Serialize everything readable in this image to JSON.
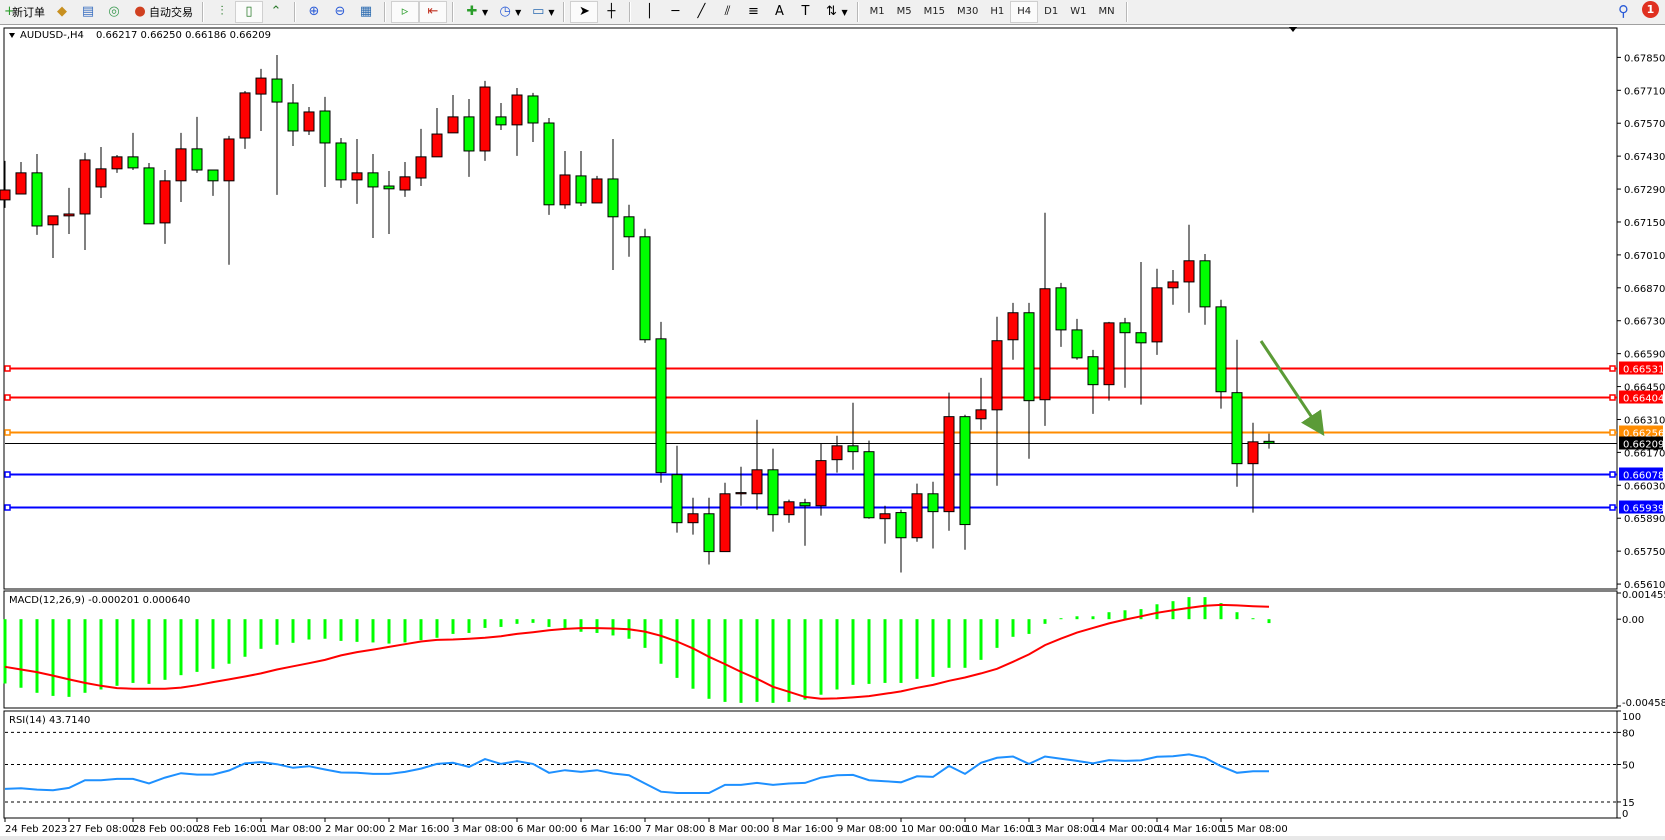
{
  "toolbar": {
    "new_order": "新订单",
    "auto_trading": "自动交易",
    "timeframes": [
      "M1",
      "M5",
      "M15",
      "M30",
      "H1",
      "H4",
      "D1",
      "W1",
      "MN"
    ],
    "active_timeframe": "H4",
    "notification_count": "1",
    "icons": [
      "new-order-icon",
      "market-watch-icon",
      "navigator-icon",
      "signals-icon",
      "auto-trading-icon",
      "bar-chart-icon",
      "candlestick-icon",
      "line-chart-icon",
      "zoom-in-icon",
      "zoom-out-icon",
      "tile-windows-icon",
      "auto-scroll-icon",
      "chart-shift-icon",
      "indicators-icon",
      "periods-icon",
      "templates-icon",
      "cursor-icon",
      "crosshair-icon",
      "vertical-line-icon",
      "horizontal-line-icon",
      "trendline-icon",
      "equidistant-channel-icon",
      "fibonacci-icon",
      "text-icon",
      "text-label-icon",
      "arrows-icon",
      "search-icon",
      "notification-icon"
    ]
  },
  "chart_data": [
    {
      "type": "candlestick",
      "symbol": "AUDUSD-,H4",
      "ohlc": "0.66217 0.66250 0.66186 0.66209",
      "ylim": [
        0.65589,
        0.67975
      ],
      "up_color": "#ff0000",
      "down_color": "#00ff00",
      "y_ticks": [
        "0.67850",
        "0.67710",
        "0.67570",
        "0.67430",
        "0.67290",
        "0.67150",
        "0.67010",
        "0.66870",
        "0.66730",
        "0.66590",
        "0.66450",
        "0.66310",
        "0.66170",
        "0.66030",
        "0.65890",
        "0.65750",
        "0.65610"
      ],
      "x_labels": [
        "24 Feb 2023",
        "27 Feb 08:00",
        "28 Feb 00:00",
        "28 Feb 16:00",
        "1 Mar 08:00",
        "2 Mar 00:00",
        "2 Mar 16:00",
        "3 Mar 08:00",
        "6 Mar 00:00",
        "6 Mar 16:00",
        "7 Mar 08:00",
        "8 Mar 00:00",
        "8 Mar 16:00",
        "9 Mar 08:00",
        "10 Mar 00:00",
        "10 Mar 16:00",
        "13 Mar 08:00",
        "14 Mar 00:00",
        "14 Mar 16:00",
        "15 Mar 08:00"
      ],
      "hlines": [
        {
          "price": "0.66531",
          "color": "#ff0000",
          "text_color": "#ffffff"
        },
        {
          "price": "0.66404",
          "color": "#ff0000",
          "text_color": "#ffffff"
        },
        {
          "price": "0.66256",
          "color": "#ff8c00",
          "text_color": "#ffffff"
        },
        {
          "price": "0.66078",
          "color": "#0000ff",
          "text_color": "#ffffff"
        },
        {
          "price": "0.65939",
          "color": "#0000ff",
          "text_color": "#ffffff"
        }
      ],
      "bid": {
        "price": "0.66209",
        "color": "#000000",
        "text_color": "#ffffff"
      },
      "arrow_color": "#5b9b37",
      "candles": [
        [
          0.67244,
          0.6741,
          0.6721,
          0.67286
        ],
        [
          0.67269,
          0.67405,
          0.67269,
          0.67359
        ],
        [
          0.67359,
          0.67439,
          0.67095,
          0.67133
        ],
        [
          0.67138,
          0.67176,
          0.66997,
          0.67176
        ],
        [
          0.67176,
          0.67295,
          0.67099,
          0.67184
        ],
        [
          0.67184,
          0.67444,
          0.67031,
          0.67414
        ],
        [
          0.67299,
          0.67469,
          0.67252,
          0.67376
        ],
        [
          0.67376,
          0.67435,
          0.67359,
          0.67427
        ],
        [
          0.67427,
          0.67529,
          0.67371,
          0.6738
        ],
        [
          0.6738,
          0.67401,
          0.67142,
          0.67142
        ],
        [
          0.67146,
          0.67371,
          0.67057,
          0.67325
        ],
        [
          0.67325,
          0.67529,
          0.67235,
          0.67461
        ],
        [
          0.67461,
          0.67597,
          0.67359,
          0.67371
        ],
        [
          0.67371,
          0.67371,
          0.67261,
          0.67325
        ],
        [
          0.67325,
          0.67516,
          0.66968,
          0.67503
        ],
        [
          0.67507,
          0.67707,
          0.67461,
          0.67699
        ],
        [
          0.67694,
          0.67801,
          0.67537,
          0.67762
        ],
        [
          0.67758,
          0.6786,
          0.67265,
          0.6766
        ],
        [
          0.67656,
          0.67737,
          0.67473,
          0.67537
        ],
        [
          0.67537,
          0.67639,
          0.6752,
          0.67618
        ],
        [
          0.67622,
          0.67682,
          0.67299,
          0.67486
        ],
        [
          0.67486,
          0.67507,
          0.67295,
          0.67329
        ],
        [
          0.67329,
          0.67503,
          0.67227,
          0.67359
        ],
        [
          0.67359,
          0.67439,
          0.67082,
          0.67299
        ],
        [
          0.67303,
          0.67367,
          0.67099,
          0.67291
        ],
        [
          0.67286,
          0.67405,
          0.67257,
          0.67342
        ],
        [
          0.67337,
          0.67546,
          0.67303,
          0.67427
        ],
        [
          0.67427,
          0.67635,
          0.67427,
          0.67524
        ],
        [
          0.67529,
          0.6769,
          0.67529,
          0.67597
        ],
        [
          0.67597,
          0.67673,
          0.67342,
          0.67452
        ],
        [
          0.67452,
          0.6775,
          0.6741,
          0.67724
        ],
        [
          0.67597,
          0.67656,
          0.67541,
          0.67563
        ],
        [
          0.67563,
          0.6772,
          0.67431,
          0.6769
        ],
        [
          0.67686,
          0.67699,
          0.6749,
          0.67571
        ],
        [
          0.67571,
          0.67592,
          0.6718,
          0.67223
        ],
        [
          0.67223,
          0.67452,
          0.67206,
          0.6735
        ],
        [
          0.67346,
          0.67452,
          0.67218,
          0.67231
        ],
        [
          0.67231,
          0.67346,
          0.67231,
          0.67333
        ],
        [
          0.67333,
          0.67503,
          0.66946,
          0.67172
        ],
        [
          0.67172,
          0.67223,
          0.67002,
          0.67087
        ],
        [
          0.67087,
          0.67121,
          0.66636,
          0.66649
        ],
        [
          0.66653,
          0.66725,
          0.66041,
          0.66084
        ],
        [
          0.66075,
          0.66198,
          0.65829,
          0.65871
        ],
        [
          0.65871,
          0.65977,
          0.6582,
          0.65909
        ],
        [
          0.65909,
          0.65977,
          0.65693,
          0.65748
        ],
        [
          0.65748,
          0.66041,
          0.65748,
          0.65994
        ],
        [
          0.65994,
          0.66109,
          0.65943,
          0.65999
        ],
        [
          0.65994,
          0.66309,
          0.65926,
          0.66096
        ],
        [
          0.66096,
          0.66186,
          0.65833,
          0.65905
        ],
        [
          0.65905,
          0.65969,
          0.65871,
          0.6596
        ],
        [
          0.65956,
          0.65973,
          0.65773,
          0.65943
        ],
        [
          0.65943,
          0.66207,
          0.65901,
          0.66135
        ],
        [
          0.66139,
          0.66241,
          0.66084,
          0.66198
        ],
        [
          0.66198,
          0.66381,
          0.66096,
          0.66173
        ],
        [
          0.66173,
          0.6622,
          0.65888,
          0.65892
        ],
        [
          0.65888,
          0.65943,
          0.65782,
          0.65909
        ],
        [
          0.65914,
          0.65926,
          0.65659,
          0.65807
        ],
        [
          0.65807,
          0.66037,
          0.6579,
          0.65994
        ],
        [
          0.65994,
          0.66045,
          0.65761,
          0.65918
        ],
        [
          0.65918,
          0.66424,
          0.65837,
          0.66322
        ],
        [
          0.66322,
          0.6633,
          0.65756,
          0.65863
        ],
        [
          0.66313,
          0.66487,
          0.66266,
          0.66351
        ],
        [
          0.66351,
          0.66747,
          0.66028,
          0.66645
        ],
        [
          0.66649,
          0.66806,
          0.66564,
          0.66764
        ],
        [
          0.66764,
          0.66806,
          0.66143,
          0.6639
        ],
        [
          0.66394,
          0.67189,
          0.66283,
          0.66866
        ],
        [
          0.6687,
          0.66891,
          0.66619,
          0.66691
        ],
        [
          0.66691,
          0.66738,
          0.66564,
          0.66572
        ],
        [
          0.66577,
          0.66606,
          0.66334,
          0.66458
        ],
        [
          0.66458,
          0.66725,
          0.6639,
          0.66721
        ],
        [
          0.66721,
          0.66742,
          0.66445,
          0.66679
        ],
        [
          0.66679,
          0.6698,
          0.66373,
          0.66636
        ],
        [
          0.6664,
          0.66951,
          0.66585,
          0.6687
        ],
        [
          0.6687,
          0.66946,
          0.66798,
          0.66895
        ],
        [
          0.66895,
          0.67138,
          0.66764,
          0.66985
        ],
        [
          0.66985,
          0.67014,
          0.66713,
          0.66789
        ],
        [
          0.66789,
          0.66819,
          0.66356,
          0.66428
        ],
        [
          0.66424,
          0.66649,
          0.66024,
          0.66122
        ],
        [
          0.66122,
          0.66296,
          0.65914,
          0.66215
        ],
        [
          0.66217,
          0.6625,
          0.66186,
          0.66209
        ]
      ]
    },
    {
      "type": "bar+line",
      "title": "MACD(12,26,9) -0.000201 0.000640",
      "ylim": [
        -0.004585,
        0.001455
      ],
      "y_ticks": [
        "0.001455",
        "0.00",
        "-0.004585"
      ],
      "histogram_color": "#00ff00",
      "signal_color": "#ff0000",
      "histogram": [
        -0.00332,
        -0.00354,
        -0.0038,
        -0.00396,
        -0.00401,
        -0.0038,
        -0.00363,
        -0.00344,
        -0.00329,
        -0.00334,
        -0.00313,
        -0.00289,
        -0.00272,
        -0.00256,
        -0.0023,
        -0.00194,
        -0.00153,
        -0.00132,
        -0.00122,
        -0.00105,
        -0.00101,
        -0.00112,
        -0.00117,
        -0.0012,
        -0.00126,
        -0.0012,
        -0.00108,
        -0.00096,
        -0.00076,
        -0.00071,
        -0.00045,
        -0.0004,
        -0.00024,
        -0.00019,
        -0.0004,
        -0.00048,
        -0.00065,
        -0.00071,
        -0.00084,
        -0.00101,
        -0.00148,
        -0.0023,
        -0.00303,
        -0.00359,
        -0.00411,
        -0.00427,
        -0.00432,
        -0.00427,
        -0.00432,
        -0.00427,
        -0.00415,
        -0.0039,
        -0.00363,
        -0.00339,
        -0.00334,
        -0.00329,
        -0.00329,
        -0.00308,
        -0.00298,
        -0.00251,
        -0.00251,
        -0.0021,
        -0.00148,
        -0.00091,
        -0.00076,
        -0.00024,
        5e-05,
        0.00015,
        0.00015,
        0.00036,
        0.00046,
        0.00052,
        0.00077,
        0.00093,
        0.00114,
        0.00114,
        0.00083,
        0.00036,
        5e-05,
        -0.000201
      ],
      "signal": [
        -0.00246,
        -0.0026,
        -0.00273,
        -0.00291,
        -0.00311,
        -0.00329,
        -0.00344,
        -0.00356,
        -0.00359,
        -0.00359,
        -0.00359,
        -0.00353,
        -0.00341,
        -0.00325,
        -0.00311,
        -0.00296,
        -0.0028,
        -0.0026,
        -0.00243,
        -0.00227,
        -0.0021,
        -0.00187,
        -0.0017,
        -0.00157,
        -0.00143,
        -0.00129,
        -0.00115,
        -0.00107,
        -0.00105,
        -0.00101,
        -0.00096,
        -0.00088,
        -0.00076,
        -0.00067,
        -0.00057,
        -0.0005,
        -0.00046,
        -0.00046,
        -0.00048,
        -0.00052,
        -0.00064,
        -0.00086,
        -0.00115,
        -0.00151,
        -0.00194,
        -0.00232,
        -0.00272,
        -0.00308,
        -0.00349,
        -0.00375,
        -0.00401,
        -0.00411,
        -0.00409,
        -0.00404,
        -0.00397,
        -0.00385,
        -0.00373,
        -0.00354,
        -0.00339,
        -0.00318,
        -0.00301,
        -0.0028,
        -0.00256,
        -0.0022,
        -0.00182,
        -0.00134,
        -0.001,
        -0.00069,
        -0.00045,
        -0.00022,
        -2e-05,
        0.00015,
        0.00033,
        0.00046,
        0.00058,
        0.00069,
        0.00074,
        0.00071,
        0.00067,
        0.00064
      ]
    },
    {
      "type": "line",
      "title": "RSI(14) 43.7140",
      "ylim": [
        0,
        100
      ],
      "levels": [
        80,
        50,
        15
      ],
      "y_ticks": [
        "100",
        "80",
        "50",
        "15",
        "0"
      ],
      "line_color": "#1e90ff",
      "values": [
        27.2,
        27.8,
        26.5,
        25.9,
        28.1,
        35.3,
        35.3,
        36.5,
        36.5,
        32.2,
        37.8,
        41.9,
        40.6,
        40.6,
        44.4,
        51.0,
        52.2,
        50.3,
        46.9,
        48.4,
        45.3,
        42.5,
        42.2,
        41.2,
        41.2,
        43.1,
        46.2,
        50.6,
        51.6,
        47.8,
        55.0,
        50.6,
        53.1,
        50.6,
        42.2,
        44.7,
        43.1,
        44.7,
        41.6,
        40.0,
        32.2,
        24.6,
        23.4,
        23.4,
        23.4,
        30.9,
        30.9,
        32.8,
        30.9,
        32.2,
        32.8,
        37.8,
        40.0,
        40.3,
        35.3,
        34.4,
        33.4,
        39.0,
        38.4,
        48.7,
        41.2,
        51.6,
        56.3,
        57.5,
        50.6,
        57.5,
        55.3,
        53.4,
        51.0,
        54.1,
        53.4,
        53.8,
        57.2,
        57.8,
        59.4,
        56.3,
        48.4,
        42.2,
        43.7,
        43.714
      ]
    }
  ]
}
